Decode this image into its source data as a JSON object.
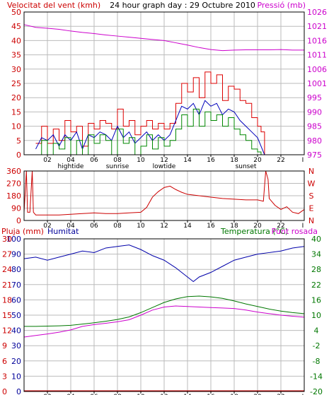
{
  "header": {
    "wind_speed_label": "Velocitat del vent (kmh)",
    "title": "24 hour graph day : 29 Octubre 2010",
    "pressure_label": "Pressió (mb)"
  },
  "bottom_header": {
    "rain_label": "Pluja (mm)",
    "humidity_label": "Humitat",
    "temperature_label": "Temperatura (°C)",
    "dewpoint_label": "Punt rosada"
  },
  "x_axis": {
    "hour_ticks": [
      "02",
      "04",
      "06",
      "08",
      "10",
      "12",
      "14",
      "16",
      "18",
      "20",
      "22"
    ],
    "end_tick": "I",
    "event_labels": [
      {
        "hour": 4,
        "text": "hightide"
      },
      {
        "hour": 8,
        "text": "sunrise"
      },
      {
        "hour": 12,
        "text": "lowtide"
      },
      {
        "hour": 19,
        "text": "sunset"
      }
    ]
  },
  "colors": {
    "background": "#ffffff",
    "frame": "#000000",
    "grid": "#bbbbbb",
    "wind_gust": "#dd0000",
    "wind_average": "#0000bb",
    "wind_speed": "#008800",
    "pressure": "#cc00cc",
    "wind_direction": "#cc0000",
    "humidity": "#0000aa",
    "temperature": "#007700",
    "dewpoint": "#cc00cc",
    "rain": "#cc0000",
    "label_red": "#cc0000",
    "label_magenta": "#cc00cc",
    "label_blue": "#000099",
    "label_green": "#007700"
  },
  "chart_data": [
    {
      "type": "line",
      "y_left": {
        "ticks": [
          0,
          5,
          10,
          15,
          20,
          25,
          30,
          35,
          40,
          45,
          50
        ],
        "range": [
          0,
          50
        ],
        "unit": "km/h"
      },
      "y_right": {
        "ticks": [
          975,
          980,
          985,
          990,
          995,
          1001,
          1006,
          1011,
          1016,
          1021,
          1026
        ],
        "range": [
          975,
          1026
        ],
        "unit": "mb"
      },
      "x_range": [
        0,
        24
      ],
      "grid": true,
      "series": [
        {
          "key": "gust",
          "axis": "left",
          "step": true,
          "x": [
            1,
            1.5,
            2,
            2.5,
            3,
            3.5,
            4,
            4.5,
            5,
            5.5,
            6,
            6.5,
            7,
            7.5,
            8,
            8.5,
            9,
            9.5,
            10,
            10.5,
            11,
            11.5,
            12,
            12.5,
            13,
            13.5,
            14,
            14.5,
            15,
            15.5,
            16,
            16.5,
            17,
            17.5,
            18,
            18.5,
            19,
            19.5,
            20,
            20.3,
            20.6,
            23.8
          ],
          "y": [
            4,
            10,
            4,
            9,
            5,
            12,
            8,
            10,
            3,
            11,
            9,
            12,
            11,
            9,
            16,
            10,
            12,
            7,
            10,
            12,
            9,
            11,
            9,
            11,
            18,
            25,
            22,
            27,
            20,
            29,
            25,
            28,
            19,
            24,
            23,
            19,
            18,
            13,
            10,
            8,
            0,
            0
          ]
        },
        {
          "key": "average",
          "axis": "left",
          "x": [
            1,
            1.5,
            2,
            2.5,
            3,
            3.5,
            4,
            4.5,
            5,
            5.5,
            6,
            6.5,
            7,
            7.5,
            8,
            8.5,
            9,
            9.5,
            10,
            10.5,
            11,
            11.5,
            12,
            12.5,
            13,
            13.5,
            14,
            14.5,
            15,
            15.5,
            16,
            16.5,
            17,
            17.5,
            18,
            18.5,
            19,
            19.5,
            20,
            20.3,
            20.6,
            23.8
          ],
          "y": [
            2,
            6,
            5,
            7,
            3,
            7,
            5,
            8,
            2,
            7,
            6,
            8,
            7,
            5,
            10,
            6,
            8,
            4,
            6,
            8,
            5,
            7,
            5,
            7,
            12,
            17,
            16,
            18,
            14,
            19,
            17,
            18,
            14,
            16,
            15,
            12,
            10,
            8,
            6,
            3,
            0,
            0
          ]
        },
        {
          "key": "speed",
          "axis": "left",
          "step": true,
          "x": [
            1,
            1.5,
            2,
            2.5,
            3,
            3.5,
            4,
            4.5,
            5,
            5.5,
            6,
            6.5,
            7,
            7.5,
            8,
            8.5,
            9,
            9.5,
            10,
            10.5,
            11,
            11.5,
            12,
            12.5,
            13,
            13.5,
            14,
            14.5,
            15,
            15.5,
            16,
            16.5,
            17,
            17.5,
            18,
            18.5,
            19,
            19.5,
            20,
            20.3,
            20.6,
            23.8
          ],
          "y": [
            0,
            5,
            0,
            4,
            2,
            6,
            0,
            5,
            0,
            7,
            4,
            7,
            5,
            0,
            9,
            4,
            6,
            0,
            3,
            7,
            2,
            6,
            3,
            5,
            9,
            14,
            10,
            16,
            10,
            15,
            12,
            14,
            10,
            13,
            9,
            7,
            5,
            2,
            1,
            0,
            0,
            0
          ]
        },
        {
          "key": "pressure",
          "axis": "right",
          "x": [
            0,
            1,
            2,
            3,
            4,
            5,
            6,
            7,
            8,
            9,
            10,
            11,
            12,
            13,
            14,
            15,
            16,
            17,
            18,
            19,
            20,
            21,
            22,
            23,
            24
          ],
          "y": [
            1021.5,
            1020.5,
            1020.2,
            1019.8,
            1019.2,
            1018.7,
            1018.3,
            1017.8,
            1017.4,
            1017.0,
            1016.6,
            1016.2,
            1015.8,
            1015.0,
            1014.2,
            1013.3,
            1012.6,
            1012.2,
            1012.4,
            1012.5,
            1012.5,
            1012.5,
            1012.6,
            1012.4,
            1012.4
          ]
        }
      ]
    },
    {
      "type": "line",
      "y_ticks": [
        360,
        270,
        180,
        90,
        0
      ],
      "y_right_labels": [
        "N",
        "W",
        "S",
        "E",
        "N"
      ],
      "y_range": [
        0,
        360
      ],
      "x_range": [
        0,
        24
      ],
      "grid": true,
      "series": [
        {
          "key": "direction",
          "x": [
            0,
            0.2,
            0.3,
            0.5,
            0.7,
            0.8,
            1,
            2,
            3,
            4,
            5,
            6,
            7,
            8,
            9,
            10,
            10.5,
            11,
            11.5,
            12,
            12.5,
            13,
            13.5,
            14,
            15,
            16,
            17,
            18,
            19,
            20,
            20.5,
            20.7,
            20.9,
            21,
            21.5,
            22,
            22.5,
            23,
            23.5,
            24
          ],
          "y": [
            60,
            360,
            60,
            60,
            360,
            60,
            40,
            40,
            40,
            45,
            50,
            55,
            50,
            50,
            55,
            60,
            95,
            170,
            210,
            240,
            250,
            225,
            205,
            190,
            180,
            170,
            160,
            155,
            150,
            150,
            140,
            360,
            300,
            160,
            110,
            80,
            100,
            60,
            50,
            80
          ]
        }
      ]
    },
    {
      "type": "line",
      "y_left_rain": {
        "ticks": [
          0,
          3,
          6,
          9,
          12,
          15,
          18,
          21,
          24,
          27,
          30
        ],
        "range": [
          0,
          30
        ],
        "unit": "mm"
      },
      "y_left_humidity": {
        "ticks": [
          0,
          10,
          20,
          30,
          40,
          50,
          60,
          70,
          80,
          90,
          100
        ],
        "range": [
          0,
          100
        ],
        "unit": "%"
      },
      "y_right": {
        "ticks": [
          40,
          34,
          28,
          22,
          16,
          10,
          4,
          -2,
          -8,
          -14,
          -20
        ],
        "range": [
          -20,
          40
        ],
        "unit": "°C"
      },
      "x_range": [
        0,
        24
      ],
      "grid": true,
      "series": [
        {
          "key": "humidity",
          "axis": "humidity",
          "x": [
            0,
            1,
            2,
            3,
            4,
            5,
            6,
            7,
            8,
            9,
            10,
            11,
            12,
            13,
            14,
            14.5,
            15,
            16,
            17,
            18,
            19,
            20,
            21,
            22,
            23,
            24
          ],
          "y": [
            87,
            88,
            86,
            88,
            90,
            92,
            91,
            94,
            95,
            96,
            93,
            89,
            86,
            81,
            75,
            72,
            75,
            78,
            82,
            86,
            88,
            90,
            91,
            92,
            94,
            95
          ]
        },
        {
          "key": "temperature",
          "axis": "temp",
          "x": [
            0,
            1,
            2,
            3,
            4,
            5,
            6,
            7,
            8,
            9,
            10,
            11,
            12,
            13,
            14,
            15,
            16,
            17,
            18,
            19,
            20,
            21,
            22,
            23,
            24
          ],
          "y": [
            5.6,
            5.6,
            5.7,
            5.8,
            6.0,
            6.5,
            7.0,
            7.6,
            8.3,
            9.3,
            11.0,
            13.0,
            15.0,
            16.4,
            17.3,
            17.5,
            17.2,
            16.6,
            15.6,
            14.4,
            13.4,
            12.4,
            11.6,
            11.0,
            10.6
          ]
        },
        {
          "key": "dewpoint",
          "axis": "temp",
          "x": [
            0,
            1,
            2,
            3,
            4,
            5,
            6,
            7,
            8,
            9,
            10,
            11,
            12,
            13,
            14,
            15,
            16,
            17,
            18,
            19,
            20,
            21,
            22,
            23,
            24
          ],
          "y": [
            1.4,
            2.0,
            2.6,
            3.3,
            4.2,
            5.6,
            6.3,
            6.8,
            7.4,
            8.2,
            10.0,
            12.0,
            13.2,
            13.6,
            13.4,
            13.2,
            13.0,
            12.8,
            12.6,
            12.0,
            11.2,
            10.6,
            10.0,
            9.6,
            9.2
          ]
        },
        {
          "key": "rain",
          "axis": "rain",
          "x": [
            0,
            24
          ],
          "y": [
            0,
            0
          ]
        }
      ]
    }
  ]
}
